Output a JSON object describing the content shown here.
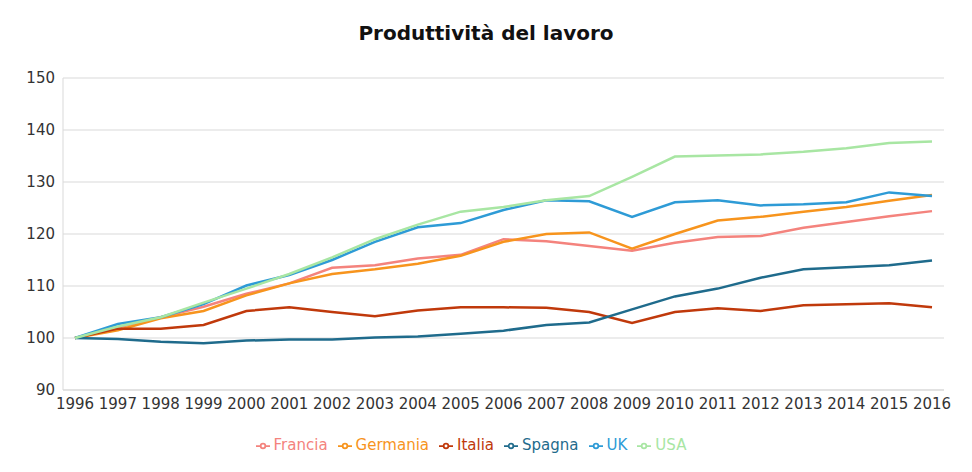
{
  "chart_data": {
    "type": "line",
    "title": "Produttività del lavoro",
    "categories": [
      "1996",
      "1997",
      "1998",
      "1999",
      "2000",
      "2001",
      "2002",
      "2003",
      "2004",
      "2005",
      "2006",
      "2007",
      "2008",
      "2009",
      "2010",
      "2011",
      "2012",
      "2013",
      "2014",
      "2015",
      "2016"
    ],
    "series": [
      {
        "name": "Francia",
        "color": "#f4837d",
        "values": [
          100,
          102,
          104,
          106,
          108.5,
          110.5,
          113.5,
          114,
          115.3,
          116,
          119,
          118.6,
          117.7,
          116.8,
          118.3,
          119.4,
          119.6,
          121.2,
          122.3,
          123.4,
          124.4
        ]
      },
      {
        "name": "Germania",
        "color": "#f7941d",
        "values": [
          100,
          101.5,
          103.8,
          105.2,
          108.2,
          110.5,
          112.3,
          113.2,
          114.3,
          115.8,
          118.5,
          120,
          120.3,
          117.2,
          120,
          122.6,
          123.3,
          124.3,
          125.2,
          126.4,
          127.5
        ]
      },
      {
        "name": "Italia",
        "color": "#c0390b",
        "values": [
          100,
          101.8,
          101.8,
          102.5,
          105.2,
          105.9,
          105,
          104.2,
          105.3,
          105.9,
          105.9,
          105.8,
          105,
          102.9,
          105,
          105.7,
          105.2,
          106.3,
          106.5,
          106.7,
          105.9
        ]
      },
      {
        "name": "Spagna",
        "color": "#1f6b8c",
        "values": [
          100,
          99.8,
          99.3,
          99,
          99.5,
          99.7,
          99.7,
          100.1,
          100.3,
          100.8,
          101.4,
          102.5,
          103,
          105.5,
          108,
          109.5,
          111.6,
          113.2,
          113.6,
          114,
          114.9
        ]
      },
      {
        "name": "UK",
        "color": "#2e9bd6",
        "values": [
          100,
          102.7,
          104,
          106.5,
          110.1,
          112.1,
          115,
          118.5,
          121.3,
          122.1,
          124.6,
          126.5,
          126.3,
          123.3,
          126.1,
          126.5,
          125.5,
          125.7,
          126.1,
          128,
          127.3
        ]
      },
      {
        "name": "USA",
        "color": "#a8e6a3",
        "values": [
          100,
          102.2,
          104,
          106.8,
          109.5,
          112.3,
          115.5,
          119,
          121.8,
          124.3,
          125.2,
          126.5,
          127.3,
          131,
          134.9,
          135.1,
          135.3,
          135.8,
          136.5,
          137.5,
          137.8
        ]
      }
    ],
    "ylim": [
      90,
      150
    ],
    "yticks": [
      90,
      100,
      110,
      120,
      130,
      140,
      150
    ],
    "grid": true,
    "legend": "bottom"
  }
}
